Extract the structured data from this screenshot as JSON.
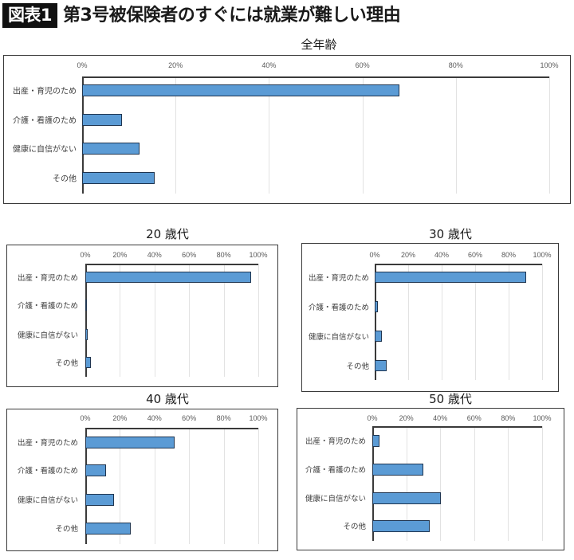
{
  "header": {
    "badge": "図表1",
    "title": "第3号被保険者のすぐには就業が難しい理由"
  },
  "colors": {
    "bar_fill": "#5B9BD5",
    "bar_border": "#1F3550",
    "badge_bg": "#111111",
    "gridline": "#e2e2e2"
  },
  "chart_data": [
    {
      "type": "bar",
      "orientation": "horizontal",
      "title": "全年齢",
      "categories": [
        "出産・育児のため",
        "介護・看護のため",
        "健康に自信がない",
        "その他"
      ],
      "values": [
        68,
        8.5,
        12.3,
        15.5
      ],
      "xlabel": "",
      "ylabel": "",
      "xlim": [
        0,
        100
      ],
      "tick_labels": [
        "0%",
        "20%",
        "40%",
        "60%",
        "80%",
        "100%"
      ],
      "grid": true,
      "legend": "none"
    },
    {
      "type": "bar",
      "orientation": "horizontal",
      "title": "20 歳代",
      "categories": [
        "出産・育児のため",
        "介護・看護のため",
        "健康に自信がない",
        "その他"
      ],
      "values": [
        96,
        0.3,
        1.2,
        3.2
      ],
      "xlim": [
        0,
        100
      ],
      "tick_labels": [
        "0%",
        "20%",
        "40%",
        "60%",
        "80%",
        "100%"
      ],
      "grid": true,
      "legend": "none"
    },
    {
      "type": "bar",
      "orientation": "horizontal",
      "title": "30 歳代",
      "categories": [
        "出産・育児のため",
        "介護・看護のため",
        "健康に自信がない",
        "その他"
      ],
      "values": [
        90.5,
        2.1,
        4.5,
        7.1
      ],
      "xlim": [
        0,
        100
      ],
      "tick_labels": [
        "0%",
        "20%",
        "40%",
        "60%",
        "80%",
        "100%"
      ],
      "grid": true,
      "legend": "none"
    },
    {
      "type": "bar",
      "orientation": "horizontal",
      "title": "40 歳代",
      "categories": [
        "出産・育児のため",
        "介護・看護のため",
        "健康に自信がない",
        "その他"
      ],
      "values": [
        51.6,
        12,
        16.6,
        26.3
      ],
      "xlim": [
        0,
        100
      ],
      "tick_labels": [
        "0%",
        "20%",
        "40%",
        "60%",
        "80%",
        "100%"
      ],
      "grid": true,
      "legend": "none"
    },
    {
      "type": "bar",
      "orientation": "horizontal",
      "title": "50 歳代",
      "categories": [
        "出産・育児のため",
        "介護・看護のため",
        "健康に自信がない",
        "その他"
      ],
      "values": [
        4,
        30,
        40.4,
        33.8
      ],
      "xlim": [
        0,
        100
      ],
      "tick_labels": [
        "0%",
        "20%",
        "40%",
        "60%",
        "80%",
        "100%"
      ],
      "grid": true,
      "legend": "none"
    }
  ]
}
